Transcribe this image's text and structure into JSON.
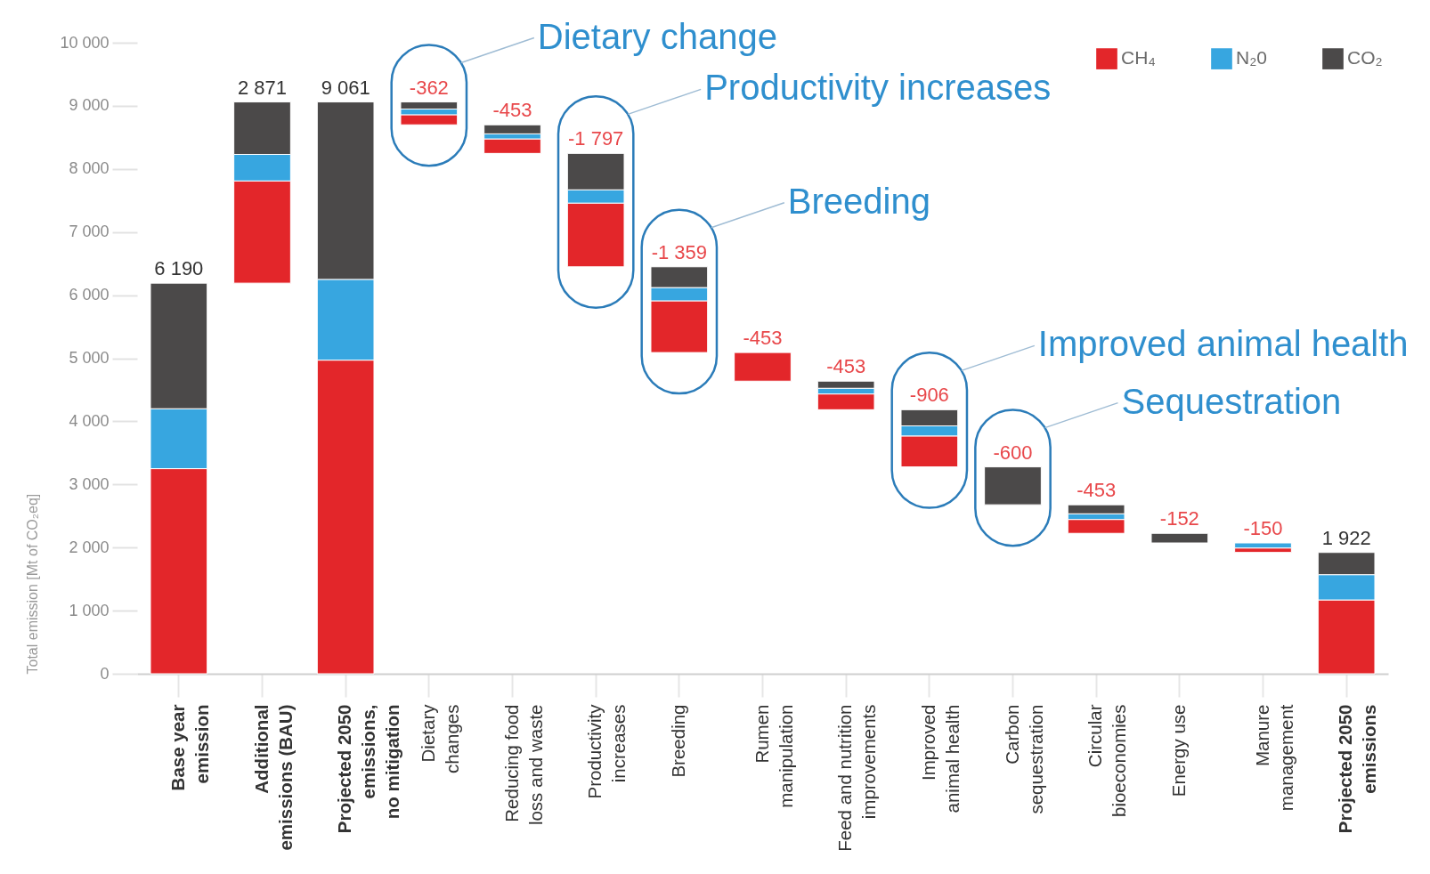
{
  "chart_data": {
    "type": "bar",
    "categories": [
      "Base year\nemission",
      "Additional\nemissions (BAU)",
      "Projected 2050\nemissions,\nno mitigation",
      "Dietary\nchanges",
      "Reducing food\nloss and waste",
      "Productivity\nincreases",
      "Breeding",
      "Rumen\nmanipulation",
      "Feed and nutrition\nimprovements",
      "Improved\nanimal health",
      "Carbon\nsequestration",
      "Circular\nbioeconomies",
      "Energy use",
      "Manure\nmanagement",
      "Projected 2050\nemissions"
    ],
    "series": [
      {
        "name": "CH₄",
        "color": "#e3262a",
        "values": [
          3250,
          1620,
          4970,
          -160,
          -230,
          -1010,
          -820,
          -453,
          -250,
          -490,
          null,
          -220,
          null,
          -70,
          1170
        ],
        "base": [
          0,
          6190,
          0,
          8859,
          8476,
          7459,
          5910,
          5090,
          4434,
          3768,
          null,
          2445,
          null,
          1993,
          0
        ]
      },
      {
        "name": "N₂0",
        "color": "#37a6e0",
        "values": [
          950,
          420,
          1280,
          -90,
          -80,
          -210,
          -210,
          null,
          -90,
          -160,
          null,
          -90,
          null,
          -80,
          400
        ],
        "base": [
          3250,
          7810,
          4970,
          8949,
          8556,
          7669,
          6120,
          null,
          4524,
          3928,
          null,
          2535,
          null,
          2073,
          1170
        ]
      },
      {
        "name": "CO₂",
        "color": "#4b4949",
        "values": [
          1990,
          831,
          2811,
          -112,
          -143,
          -577,
          -329,
          null,
          -113,
          -256,
          -600,
          -143,
          -152,
          null,
          352
        ],
        "base": [
          4200,
          8230,
          6250,
          9061,
          8699,
          8246,
          6449,
          null,
          4637,
          4184,
          3278,
          2678,
          2225,
          null,
          1570
        ]
      }
    ],
    "totals": [
      "6 190",
      "2 871",
      "9 061",
      "-362",
      "-453",
      "-1 797",
      "-1 359",
      "-453",
      "-453",
      "-906",
      "-600",
      "-453",
      "-152",
      "-150",
      "1 922"
    ],
    "ylabel": "Total emission [Mt of CO₂eq]",
    "ylim": [
      0,
      10000
    ],
    "yticks": [
      0,
      {
        "value": 1000,
        "label": "1 000"
      },
      {
        "value": 2000,
        "label": "2 000"
      },
      {
        "value": 3000,
        "label": "3 000"
      },
      {
        "value": 4000,
        "label": "4 000"
      },
      {
        "value": 5000,
        "label": "5 000"
      },
      {
        "value": 6000,
        "label": "6 000"
      },
      {
        "value": 7000,
        "label": "7 000"
      },
      {
        "value": 8000,
        "label": "8 000"
      },
      {
        "value": 9000,
        "label": "9 000"
      },
      {
        "value": 10000,
        "label": "10 000"
      }
    ],
    "legend": "top right",
    "annotations": [
      "Dietary change",
      "Productivity increases",
      "Breeding",
      "Improved animal health",
      "Sequestration"
    ]
  }
}
